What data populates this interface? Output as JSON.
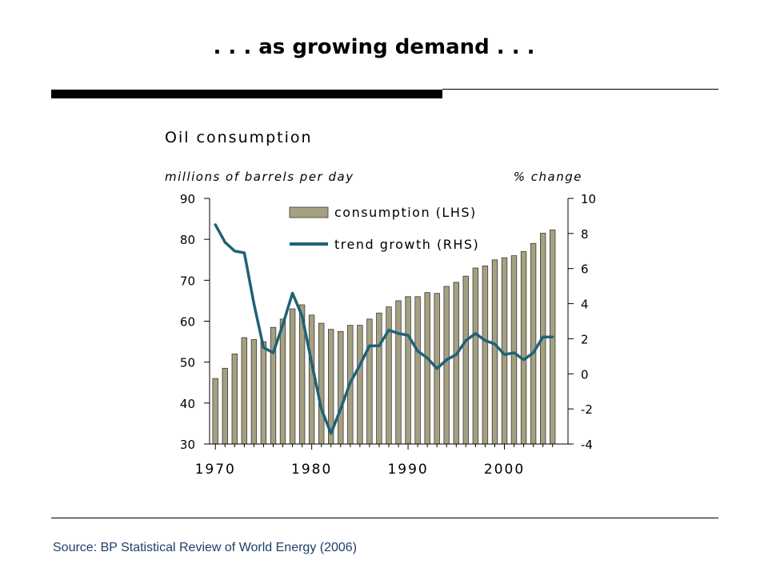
{
  "slide": {
    "title": ". . . as growing demand . . .",
    "source": "Source: BP Statistical Review of World Energy (2006)"
  },
  "colors": {
    "bar_fill": "#a6a082",
    "bar_stroke": "#3c3a30",
    "line": "#1f6277"
  },
  "chart_data": {
    "type": "bar",
    "title": "Oil consumption",
    "left_unit_label": "millions of barrels per day",
    "right_unit_label": "% change",
    "x": [
      1970,
      1971,
      1972,
      1973,
      1974,
      1975,
      1976,
      1977,
      1978,
      1979,
      1980,
      1981,
      1982,
      1983,
      1984,
      1985,
      1986,
      1987,
      1988,
      1989,
      1990,
      1991,
      1992,
      1993,
      1994,
      1995,
      1996,
      1997,
      1998,
      1999,
      2000,
      2001,
      2002,
      2003,
      2004,
      2005
    ],
    "xlim": [
      1969.4,
      2006.6
    ],
    "x_ticks": [
      "1970",
      "1980",
      "1990",
      "2000"
    ],
    "x_tick_values": [
      1970,
      1980,
      1990,
      2000
    ],
    "left_axis": {
      "ylim": [
        30,
        90
      ],
      "ticks": [
        "30",
        "40",
        "50",
        "60",
        "70",
        "80",
        "90"
      ],
      "tick_values": [
        30,
        40,
        50,
        60,
        70,
        80,
        90
      ]
    },
    "right_axis": {
      "ylim": [
        -4,
        10
      ],
      "ticks": [
        "-4",
        "-2",
        "0",
        "2",
        "4",
        "6",
        "8",
        "10"
      ],
      "tick_values": [
        -4,
        -2,
        0,
        2,
        4,
        6,
        8,
        10
      ]
    },
    "grid": false,
    "legend_position": "top-center",
    "series": [
      {
        "name": "consumption (LHS)",
        "type": "bar",
        "axis": "left",
        "values": [
          46,
          48.5,
          52,
          56,
          55.5,
          55,
          58.5,
          60.5,
          63,
          64,
          61.5,
          59.5,
          58,
          57.5,
          59,
          59,
          60.5,
          62,
          63.5,
          65,
          66,
          66,
          67,
          66.8,
          68.5,
          69.5,
          71,
          73,
          73.5,
          75,
          75.5,
          76,
          77,
          79,
          81.5,
          82.3
        ]
      },
      {
        "name": "trend growth (RHS)",
        "type": "line",
        "axis": "right",
        "values": [
          8.5,
          7.5,
          7.0,
          6.9,
          4.0,
          1.5,
          1.2,
          2.8,
          4.6,
          3.3,
          0.6,
          -2.0,
          -3.4,
          -2.0,
          -0.5,
          0.5,
          1.6,
          1.6,
          2.5,
          2.3,
          2.2,
          1.3,
          0.9,
          0.3,
          0.8,
          1.1,
          1.9,
          2.3,
          1.9,
          1.7,
          1.1,
          1.2,
          0.8,
          1.2,
          2.1,
          2.1
        ]
      }
    ]
  }
}
